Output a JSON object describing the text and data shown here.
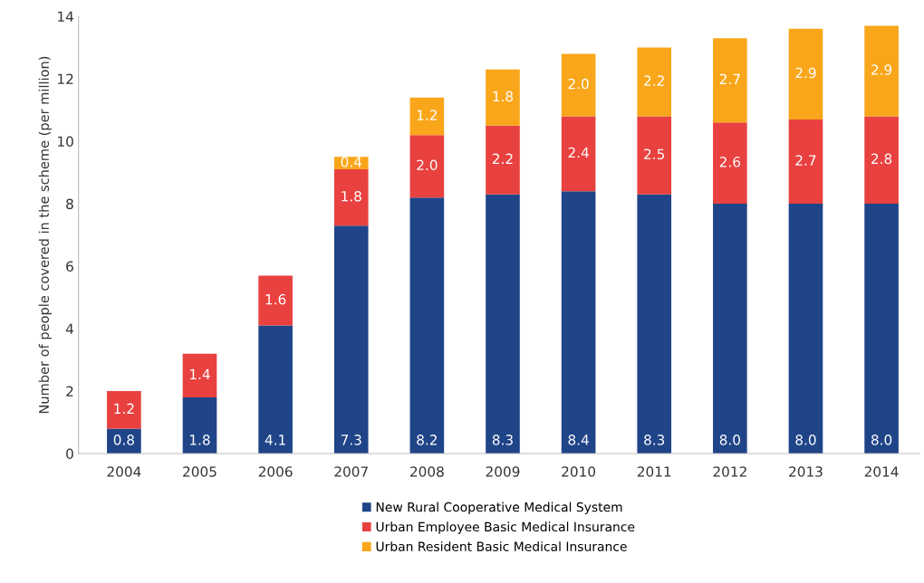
{
  "chart_data": {
    "type": "bar",
    "stacked": true,
    "ylabel": "Number of people covered in the scheme (per million)",
    "categories": [
      "2004",
      "2005",
      "2006",
      "2007",
      "2008",
      "2009",
      "2010",
      "2011",
      "2012",
      "2013",
      "2014"
    ],
    "series": [
      {
        "name": "New Rural Cooperative Medical System",
        "color": "#1f4488",
        "values": [
          0.8,
          1.8,
          4.1,
          7.3,
          8.2,
          8.3,
          8.4,
          8.3,
          8.0,
          8.0,
          8.0
        ],
        "value_labels": [
          "0.8",
          "1.8",
          "4.1",
          "7.3",
          "8.2",
          "8.3",
          "8.4",
          "8.3",
          "8.0",
          "8.0",
          "8.0"
        ]
      },
      {
        "name": "Urban Employee Basic Medical Insurance",
        "color": "#e8413f",
        "values": [
          1.2,
          1.4,
          1.6,
          1.8,
          2.0,
          2.2,
          2.4,
          2.5,
          2.6,
          2.7,
          2.8
        ],
        "value_labels": [
          "1.2",
          "1.4",
          "1.6",
          "1.8",
          "2.0",
          "2.2",
          "2.4",
          "2.5",
          "2.6",
          "2.7",
          "2.8"
        ]
      },
      {
        "name": "Urban Resident Basic Medical Insurance",
        "color": "#f9a61a",
        "values": [
          null,
          null,
          null,
          0.4,
          1.2,
          1.8,
          2.0,
          2.2,
          2.7,
          2.9,
          2.9
        ],
        "value_labels": [
          null,
          null,
          null,
          "0.4",
          "1.2",
          "1.8",
          "2.0",
          "2.2",
          "2.7",
          "2.9",
          "2.9"
        ]
      }
    ],
    "ylim": [
      0,
      14
    ],
    "yticks": [
      0,
      2,
      4,
      6,
      8,
      10,
      12,
      14
    ],
    "legend": "bottom",
    "grid": false
  }
}
